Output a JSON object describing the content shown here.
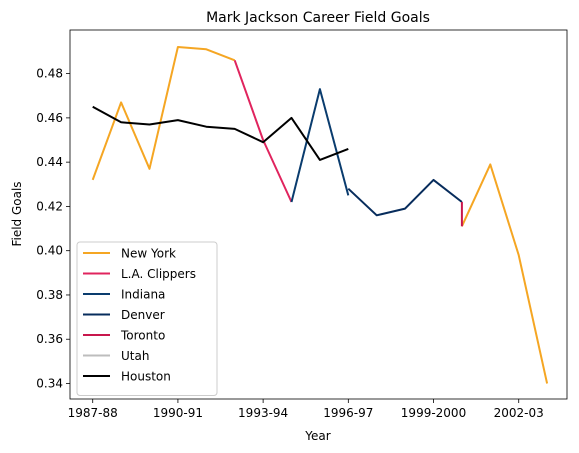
{
  "chart_data": {
    "type": "line",
    "title": "Mark Jackson  Career Field Goals",
    "xlabel": "Year",
    "ylabel": "Field Goals",
    "x_tick_labels": [
      "1987-88",
      "1990-91",
      "1993-94",
      "1996-97",
      "1999-2000",
      "2002-03"
    ],
    "x_tick_index": [
      0,
      3,
      6,
      9,
      12,
      15
    ],
    "y_ticks": [
      "0.34",
      "0.36",
      "0.38",
      "0.40",
      "0.42",
      "0.44",
      "0.46",
      "0.48"
    ],
    "xlim": [
      -0.8,
      16.7
    ],
    "ylim": [
      0.333,
      0.4997
    ],
    "grid": false,
    "legend_position": "lower-left",
    "series": [
      {
        "name": "New York",
        "color": "#f5a623",
        "x": [
          0,
          1,
          2,
          3,
          4,
          5
        ],
        "y": [
          0.432,
          0.467,
          0.437,
          0.492,
          0.491,
          0.486
        ]
      },
      {
        "name": "New York",
        "color": "#f5a623",
        "legend": false,
        "x": [
          13,
          14,
          15,
          16
        ],
        "y": [
          0.411,
          0.439,
          0.398,
          0.34
        ]
      },
      {
        "name": "L.A. Clippers",
        "color": "#e0245e",
        "x": [
          5,
          6,
          7
        ],
        "y": [
          0.486,
          0.45,
          0.422
        ]
      },
      {
        "name": "Indiana",
        "color": "#0a3c6e",
        "x": [
          7,
          8,
          9
        ],
        "y": [
          0.422,
          0.473,
          0.425
        ]
      },
      {
        "name": "Denver",
        "color": "#072c5c",
        "x": [
          9,
          10,
          11,
          12,
          13
        ],
        "y": [
          0.428,
          0.416,
          0.419,
          0.432,
          0.422
        ]
      },
      {
        "name": "Toronto",
        "color": "#c8174c",
        "x": [
          13,
          13
        ],
        "y": [
          0.422,
          0.411
        ]
      },
      {
        "name": "Utah",
        "color": "#bdbdbd",
        "x": [],
        "y": []
      },
      {
        "name": "Houston",
        "color": "#000000",
        "x": [
          0,
          1,
          2,
          3,
          4,
          5,
          6,
          7,
          8,
          9
        ],
        "y": [
          0.465,
          0.458,
          0.457,
          0.459,
          0.456,
          0.455,
          0.449,
          0.46,
          0.441,
          0.446
        ]
      }
    ]
  }
}
